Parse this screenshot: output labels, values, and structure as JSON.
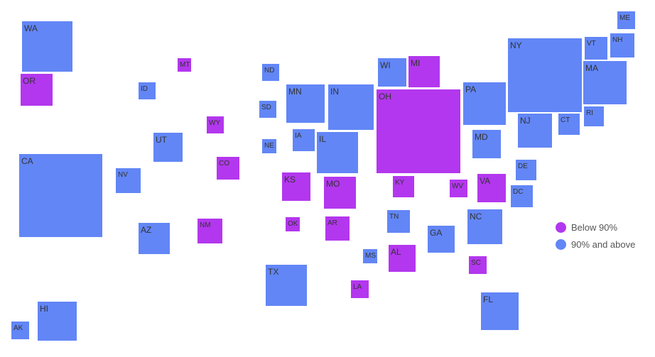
{
  "chart_data": {
    "type": "proportional-square-map",
    "legend": [
      {
        "key": "below",
        "label": "Below 90%",
        "color": "#b337ee"
      },
      {
        "key": "above",
        "label": "90% and above",
        "color": "#6286f6"
      }
    ],
    "legend_position": "right",
    "states": [
      {
        "label": "WA",
        "group": "above"
      },
      {
        "label": "OR",
        "group": "below"
      },
      {
        "label": "CA",
        "group": "above"
      },
      {
        "label": "MT",
        "group": "below"
      },
      {
        "label": "ID",
        "group": "above"
      },
      {
        "label": "WY",
        "group": "below"
      },
      {
        "label": "UT",
        "group": "above"
      },
      {
        "label": "NV",
        "group": "above"
      },
      {
        "label": "CO",
        "group": "below"
      },
      {
        "label": "AZ",
        "group": "above"
      },
      {
        "label": "NM",
        "group": "below"
      },
      {
        "label": "ND",
        "group": "above"
      },
      {
        "label": "SD",
        "group": "above"
      },
      {
        "label": "NE",
        "group": "above"
      },
      {
        "label": "KS",
        "group": "below"
      },
      {
        "label": "OK",
        "group": "below"
      },
      {
        "label": "TX",
        "group": "above"
      },
      {
        "label": "MN",
        "group": "above"
      },
      {
        "label": "IA",
        "group": "above"
      },
      {
        "label": "MO",
        "group": "below"
      },
      {
        "label": "AR",
        "group": "below"
      },
      {
        "label": "LA",
        "group": "below"
      },
      {
        "label": "WI",
        "group": "above"
      },
      {
        "label": "IL",
        "group": "above"
      },
      {
        "label": "MS",
        "group": "above"
      },
      {
        "label": "MI",
        "group": "below"
      },
      {
        "label": "IN",
        "group": "above"
      },
      {
        "label": "KY",
        "group": "below"
      },
      {
        "label": "TN",
        "group": "above"
      },
      {
        "label": "AL",
        "group": "below"
      },
      {
        "label": "OH",
        "group": "below"
      },
      {
        "label": "WV",
        "group": "below"
      },
      {
        "label": "GA",
        "group": "above"
      },
      {
        "label": "FL",
        "group": "above"
      },
      {
        "label": "PA",
        "group": "above"
      },
      {
        "label": "MD",
        "group": "above"
      },
      {
        "label": "VA",
        "group": "below"
      },
      {
        "label": "NC",
        "group": "above"
      },
      {
        "label": "SC",
        "group": "below"
      },
      {
        "label": "NY",
        "group": "above"
      },
      {
        "label": "NJ",
        "group": "above"
      },
      {
        "label": "DE",
        "group": "above"
      },
      {
        "label": "DC",
        "group": "above"
      },
      {
        "label": "CT",
        "group": "above"
      },
      {
        "label": "RI",
        "group": "above"
      },
      {
        "label": "MA",
        "group": "above"
      },
      {
        "label": "VT",
        "group": "above"
      },
      {
        "label": "NH",
        "group": "above"
      },
      {
        "label": "ME",
        "group": "above"
      },
      {
        "label": "HI",
        "group": "above"
      },
      {
        "label": "AK",
        "group": "above"
      }
    ]
  }
}
